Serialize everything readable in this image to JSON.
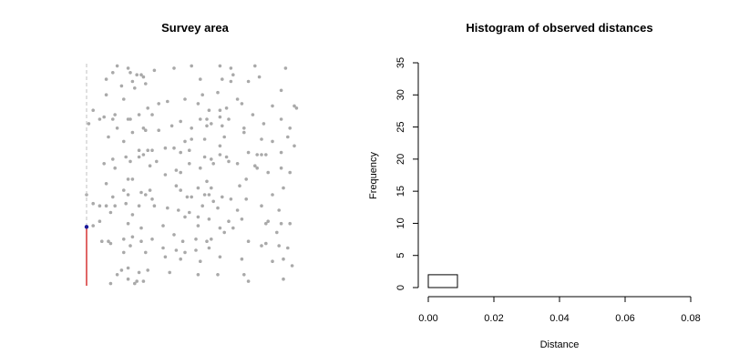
{
  "colors": {
    "point": "#a9a9a9",
    "line": "#c0c0c0",
    "transect": "#cc0000",
    "observer": "#1a1a9a",
    "bar": "#000000"
  },
  "chart_data": [
    {
      "type": "scatter",
      "title": "Survey area",
      "xlim": [
        0,
        1
      ],
      "ylim": [
        0,
        1
      ],
      "axes": "none",
      "transect": {
        "x": 0,
        "y_start": 0,
        "y_end": 1,
        "covered_y": 0.265,
        "observer": [
          0,
          0.265
        ]
      },
      "points": [
        [
          0.14,
          0.99
        ],
        [
          0.19,
          0.98
        ],
        [
          0.31,
          0.97
        ],
        [
          0.4,
          0.98
        ],
        [
          0.48,
          0.99
        ],
        [
          0.61,
          0.99
        ],
        [
          0.66,
          0.98
        ],
        [
          0.77,
          0.99
        ],
        [
          0.91,
          0.98
        ],
        [
          0.12,
          0.96
        ],
        [
          0.23,
          0.95
        ],
        [
          0.25,
          0.95
        ],
        [
          0.2,
          0.96
        ],
        [
          0.67,
          0.95
        ],
        [
          0.09,
          0.93
        ],
        [
          0.21,
          0.92
        ],
        [
          0.26,
          0.94
        ],
        [
          0.52,
          0.93
        ],
        [
          0.62,
          0.93
        ],
        [
          0.66,
          0.92
        ],
        [
          0.74,
          0.92
        ],
        [
          0.79,
          0.94
        ],
        [
          0.27,
          0.91
        ],
        [
          0.16,
          0.9
        ],
        [
          0.22,
          0.89
        ],
        [
          0.89,
          0.88
        ],
        [
          0.09,
          0.86
        ],
        [
          0.53,
          0.86
        ],
        [
          0.6,
          0.87
        ],
        [
          0.17,
          0.84
        ],
        [
          0.45,
          0.84
        ],
        [
          0.37,
          0.83
        ],
        [
          0.69,
          0.84
        ],
        [
          0.33,
          0.82
        ],
        [
          0.51,
          0.82
        ],
        [
          0.71,
          0.82
        ],
        [
          0.85,
          0.81
        ],
        [
          0.95,
          0.81
        ],
        [
          0.96,
          0.8
        ],
        [
          0.03,
          0.79
        ],
        [
          0.56,
          0.79
        ],
        [
          0.61,
          0.79
        ],
        [
          0.64,
          0.8
        ],
        [
          0.28,
          0.8
        ],
        [
          0.13,
          0.77
        ],
        [
          0.24,
          0.77
        ],
        [
          0.08,
          0.76
        ],
        [
          0.76,
          0.77
        ],
        [
          0.06,
          0.75
        ],
        [
          0.3,
          0.77
        ],
        [
          0.2,
          0.75
        ],
        [
          0.12,
          0.75
        ],
        [
          0.52,
          0.75
        ],
        [
          0.55,
          0.75
        ],
        [
          0.61,
          0.76
        ],
        [
          0.65,
          0.75
        ],
        [
          0.89,
          0.75
        ],
        [
          0.01,
          0.73
        ],
        [
          0.19,
          0.75
        ],
        [
          0.43,
          0.74
        ],
        [
          0.57,
          0.73
        ],
        [
          0.55,
          0.72
        ],
        [
          0.81,
          0.73
        ],
        [
          0.26,
          0.71
        ],
        [
          0.39,
          0.72
        ],
        [
          0.62,
          0.72
        ],
        [
          0.14,
          0.71
        ],
        [
          0.48,
          0.71
        ],
        [
          0.72,
          0.71
        ],
        [
          0.93,
          0.71
        ],
        [
          0.27,
          0.7
        ],
        [
          0.33,
          0.7
        ],
        [
          0.21,
          0.69
        ],
        [
          0.72,
          0.69
        ],
        [
          0.92,
          0.67
        ],
        [
          0.1,
          0.67
        ],
        [
          0.48,
          0.66
        ],
        [
          0.54,
          0.66
        ],
        [
          0.63,
          0.67
        ],
        [
          0.8,
          0.66
        ],
        [
          0.17,
          0.65
        ],
        [
          0.36,
          0.62
        ],
        [
          0.45,
          0.65
        ],
        [
          0.61,
          0.63
        ],
        [
          0.85,
          0.65
        ],
        [
          0.95,
          0.63
        ],
        [
          0.89,
          0.6
        ],
        [
          0.24,
          0.61
        ],
        [
          0.28,
          0.61
        ],
        [
          0.43,
          0.6
        ],
        [
          0.3,
          0.61
        ],
        [
          0.4,
          0.62
        ],
        [
          0.47,
          0.61
        ],
        [
          0.61,
          0.59
        ],
        [
          0.74,
          0.6
        ],
        [
          0.78,
          0.59
        ],
        [
          0.12,
          0.57
        ],
        [
          0.18,
          0.58
        ],
        [
          0.24,
          0.58
        ],
        [
          0.26,
          0.59
        ],
        [
          0.54,
          0.58
        ],
        [
          0.64,
          0.58
        ],
        [
          0.8,
          0.59
        ],
        [
          0.57,
          0.57
        ],
        [
          0.2,
          0.56
        ],
        [
          0.82,
          0.59
        ],
        [
          0.08,
          0.55
        ],
        [
          0.29,
          0.54
        ],
        [
          0.32,
          0.56
        ],
        [
          0.47,
          0.55
        ],
        [
          0.13,
          0.53
        ],
        [
          0.65,
          0.56
        ],
        [
          0.58,
          0.55
        ],
        [
          0.69,
          0.55
        ],
        [
          0.77,
          0.54
        ],
        [
          0.78,
          0.53
        ],
        [
          0.89,
          0.53
        ],
        [
          0.41,
          0.52
        ],
        [
          0.43,
          0.51
        ],
        [
          0.52,
          0.53
        ],
        [
          0.93,
          0.51
        ],
        [
          0.36,
          0.5
        ],
        [
          0.73,
          0.48
        ],
        [
          0.83,
          0.51
        ],
        [
          0.09,
          0.46
        ],
        [
          0.21,
          0.48
        ],
        [
          0.19,
          0.48
        ],
        [
          0.41,
          0.45
        ],
        [
          0.55,
          0.47
        ],
        [
          0.7,
          0.45
        ],
        [
          0.51,
          0.44
        ],
        [
          0.57,
          0.44
        ],
        [
          0.43,
          0.43
        ],
        [
          0.9,
          0.44
        ],
        [
          0.0,
          0.41
        ],
        [
          0.17,
          0.43
        ],
        [
          0.25,
          0.42
        ],
        [
          0.12,
          0.4
        ],
        [
          0.27,
          0.41
        ],
        [
          0.29,
          0.43
        ],
        [
          0.19,
          0.41
        ],
        [
          0.3,
          0.39
        ],
        [
          0.46,
          0.4
        ],
        [
          0.48,
          0.4
        ],
        [
          0.54,
          0.41
        ],
        [
          0.56,
          0.41
        ],
        [
          0.62,
          0.4
        ],
        [
          0.73,
          0.39
        ],
        [
          0.85,
          0.41
        ],
        [
          0.66,
          0.39
        ],
        [
          0.58,
          0.38
        ],
        [
          0.03,
          0.37
        ],
        [
          0.06,
          0.36
        ],
        [
          0.09,
          0.36
        ],
        [
          0.13,
          0.36
        ],
        [
          0.18,
          0.37
        ],
        [
          0.24,
          0.36
        ],
        [
          0.31,
          0.36
        ],
        [
          0.37,
          0.35
        ],
        [
          0.42,
          0.34
        ],
        [
          0.47,
          0.33
        ],
        [
          0.53,
          0.36
        ],
        [
          0.6,
          0.35
        ],
        [
          0.69,
          0.34
        ],
        [
          0.8,
          0.36
        ],
        [
          0.88,
          0.34
        ],
        [
          0.11,
          0.33
        ],
        [
          0.21,
          0.32
        ],
        [
          0.45,
          0.31
        ],
        [
          0.51,
          0.31
        ],
        [
          0.56,
          0.3
        ],
        [
          0.06,
          0.29
        ],
        [
          0.65,
          0.29
        ],
        [
          0.71,
          0.3
        ],
        [
          0.83,
          0.29
        ],
        [
          0.93,
          0.28
        ],
        [
          0.89,
          0.28
        ],
        [
          0.03,
          0.27
        ],
        [
          0.25,
          0.26
        ],
        [
          0.35,
          0.27
        ],
        [
          0.51,
          0.27
        ],
        [
          0.61,
          0.26
        ],
        [
          0.67,
          0.26
        ],
        [
          0.19,
          0.28
        ],
        [
          0.82,
          0.28
        ],
        [
          0.63,
          0.24
        ],
        [
          0.87,
          0.24
        ],
        [
          0.4,
          0.23
        ],
        [
          0.21,
          0.22
        ],
        [
          0.07,
          0.2
        ],
        [
          0.25,
          0.2
        ],
        [
          0.1,
          0.2
        ],
        [
          0.17,
          0.21
        ],
        [
          0.3,
          0.21
        ],
        [
          0.44,
          0.2
        ],
        [
          0.5,
          0.21
        ],
        [
          0.55,
          0.2
        ],
        [
          0.57,
          0.21
        ],
        [
          0.74,
          0.2
        ],
        [
          0.82,
          0.19
        ],
        [
          0.88,
          0.18
        ],
        [
          0.11,
          0.19
        ],
        [
          0.2,
          0.18
        ],
        [
          0.35,
          0.17
        ],
        [
          0.41,
          0.16
        ],
        [
          0.45,
          0.15
        ],
        [
          0.5,
          0.16
        ],
        [
          0.56,
          0.17
        ],
        [
          0.8,
          0.18
        ],
        [
          0.92,
          0.17
        ],
        [
          0.27,
          0.15
        ],
        [
          0.17,
          0.15
        ],
        [
          0.36,
          0.13
        ],
        [
          0.43,
          0.12
        ],
        [
          0.52,
          0.11
        ],
        [
          0.85,
          0.11
        ],
        [
          0.61,
          0.13
        ],
        [
          0.71,
          0.12
        ],
        [
          0.9,
          0.12
        ],
        [
          0.94,
          0.09
        ],
        [
          0.19,
          0.08
        ],
        [
          0.24,
          0.06
        ],
        [
          0.28,
          0.07
        ],
        [
          0.16,
          0.07
        ],
        [
          0.14,
          0.05
        ],
        [
          0.38,
          0.06
        ],
        [
          0.51,
          0.05
        ],
        [
          0.6,
          0.05
        ],
        [
          0.72,
          0.05
        ],
        [
          0.9,
          0.03
        ],
        [
          0.23,
          0.02
        ],
        [
          0.19,
          0.03
        ],
        [
          0.22,
          0.01
        ],
        [
          0.11,
          0.01
        ],
        [
          0.26,
          0.02
        ],
        [
          0.74,
          0.02
        ]
      ]
    },
    {
      "type": "bar",
      "title": "Histogram of observed distances",
      "xlabel": "Distance",
      "ylabel": "Frequency",
      "xlim": [
        0,
        0.08
      ],
      "ylim": [
        0,
        35
      ],
      "xticks": [
        "0.00",
        "0.02",
        "0.04",
        "0.06",
        "0.08"
      ],
      "yticks": [
        "0",
        "5",
        "10",
        "15",
        "20",
        "25",
        "30",
        "35"
      ],
      "bin_width": 0.00889,
      "bins": [
        {
          "x0": 0.0,
          "x1": 0.00889,
          "count": 2
        },
        {
          "x0": 0.00889,
          "x1": 0.01778,
          "count": 0
        },
        {
          "x0": 0.01778,
          "x1": 0.02667,
          "count": 0
        },
        {
          "x0": 0.02667,
          "x1": 0.03556,
          "count": 0
        },
        {
          "x0": 0.03556,
          "x1": 0.04444,
          "count": 0
        },
        {
          "x0": 0.04444,
          "x1": 0.05333,
          "count": 0
        },
        {
          "x0": 0.05333,
          "x1": 0.06222,
          "count": 0
        },
        {
          "x0": 0.06222,
          "x1": 0.07111,
          "count": 0
        },
        {
          "x0": 0.07111,
          "x1": 0.08,
          "count": 0
        }
      ]
    }
  ]
}
